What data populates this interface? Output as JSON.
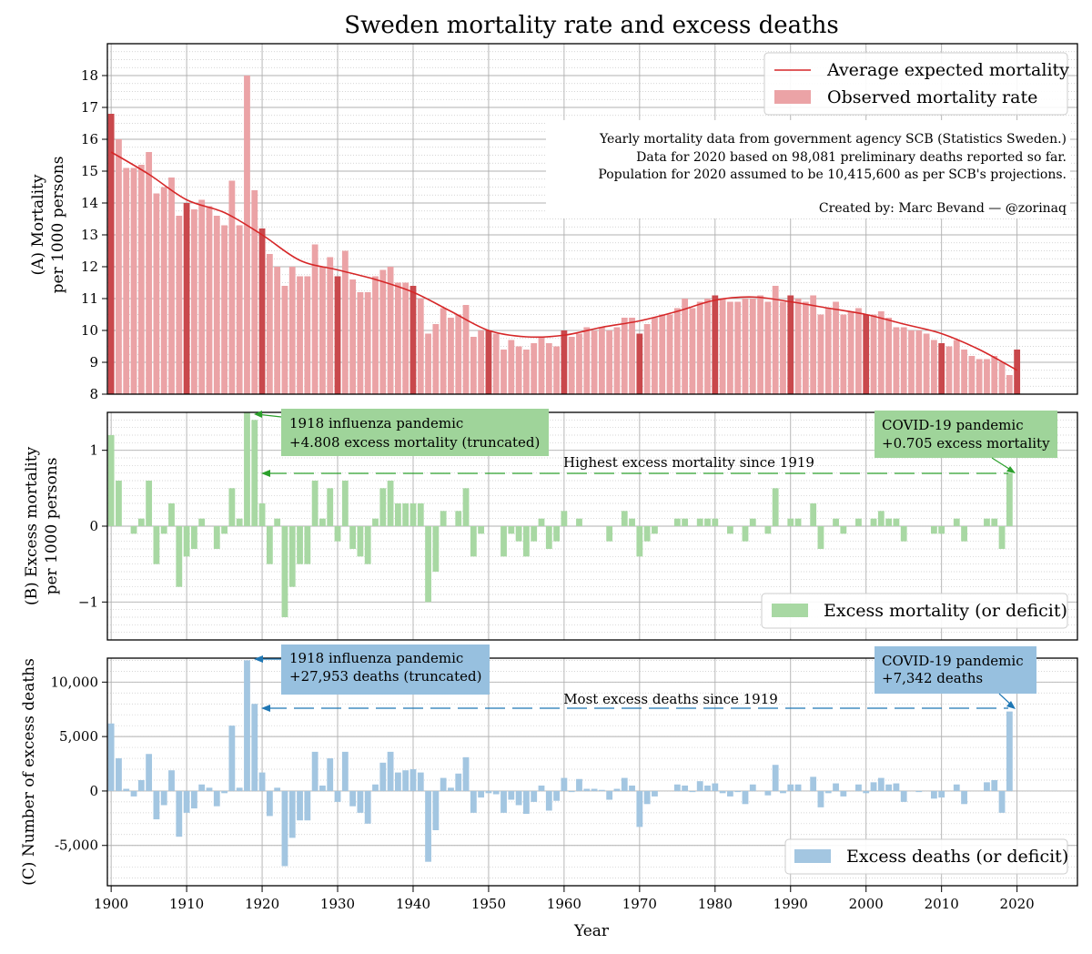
{
  "title": "Sweden mortality rate and excess deaths",
  "xlabel": "Year",
  "x_ticks": [
    1900,
    1910,
    1920,
    1930,
    1940,
    1950,
    1960,
    1970,
    1980,
    1990,
    2000,
    2010,
    2020
  ],
  "colors": {
    "red_bar": "#eba3a6",
    "red_bar_decade": "#c9484c",
    "red_line": "#d62728",
    "green_bar": "#a8d8a3",
    "green_box": "#9fd49a",
    "green_arrow": "#2ca02c",
    "blue_bar": "#a3c6e1",
    "blue_box": "#97c0df",
    "blue_arrow": "#1f77b4",
    "grid": "#b0b0b0"
  },
  "panel_a": {
    "ylabel_line1": "(A) Mortality",
    "ylabel_line2": "per 1000 persons",
    "y_ticks": [
      8,
      9,
      10,
      11,
      12,
      13,
      14,
      15,
      16,
      17,
      18
    ],
    "legend_line": "Average expected mortality",
    "legend_bar": "Observed mortality rate",
    "notes": [
      "Yearly mortality data from government agency SCB (Statistics Sweden.)",
      "Data for 2020 based on 98,081 preliminary deaths reported so far.",
      "Population for 2020 assumed to be 10,415,600 as per SCB's projections."
    ],
    "credit": "Created by: Marc Bevand — @zorinaq"
  },
  "panel_b": {
    "ylabel_line1": "(B) Excess mortality",
    "ylabel_line2": "per 1000 persons",
    "y_ticks": [
      -1,
      0,
      1
    ],
    "y_tick_labels": [
      "−1",
      "0",
      "1"
    ],
    "legend": "Excess mortality (or deficit)",
    "ann_1918_line1": "1918 influenza pandemic",
    "ann_1918_line2": "+4.808 excess mortality (truncated)",
    "ann_covid_line1": "COVID-19 pandemic",
    "ann_covid_line2": "+0.705 excess mortality",
    "highest_label": "Highest excess mortality since 1919"
  },
  "panel_c": {
    "ylabel": "(C) Number of excess deaths",
    "y_ticks": [
      -5000,
      0,
      5000,
      10000
    ],
    "y_tick_labels": [
      "-5,000",
      "0",
      "5,000",
      "10,000"
    ],
    "legend": "Excess deaths (or deficit)",
    "ann_1918_line1": "1918 influenza pandemic",
    "ann_1918_line2": "+27,953 deaths (truncated)",
    "ann_covid_line1": "COVID-19 pandemic",
    "ann_covid_line2": "+7,342 deaths",
    "most_label": "Most excess deaths since 1919"
  },
  "chart_data": [
    {
      "type": "bar",
      "panel": "A",
      "overlay_line": "Average expected mortality",
      "x_start": 1900,
      "x_end": 2020,
      "xlim": [
        1899.5,
        2028
      ],
      "ylim": [
        8,
        19
      ],
      "observed": [
        16.8,
        16.0,
        15.1,
        15.1,
        15.2,
        15.6,
        14.3,
        14.5,
        14.8,
        13.6,
        14.0,
        13.8,
        14.1,
        13.9,
        13.6,
        13.3,
        14.7,
        13.3,
        18.0,
        14.4,
        13.2,
        12.4,
        12.0,
        11.4,
        12.0,
        11.7,
        11.7,
        12.7,
        12.0,
        12.3,
        11.7,
        12.5,
        11.6,
        11.2,
        11.2,
        11.7,
        11.9,
        12.0,
        11.5,
        11.5,
        11.4,
        11.0,
        9.9,
        10.2,
        10.7,
        10.4,
        10.5,
        10.8,
        9.8,
        10.0,
        10.0,
        9.9,
        9.4,
        9.7,
        9.5,
        9.4,
        9.6,
        9.8,
        9.6,
        9.5,
        10.0,
        9.8,
        9.9,
        10.1,
        10.0,
        10.1,
        10.0,
        10.1,
        10.4,
        10.4,
        9.9,
        10.2,
        10.4,
        10.5,
        10.5,
        10.7,
        11.0,
        10.7,
        10.9,
        11.0,
        11.1,
        11.0,
        10.9,
        10.9,
        11.0,
        11.0,
        11.1,
        10.9,
        11.4,
        10.9,
        11.1,
        11.0,
        10.9,
        11.1,
        10.5,
        10.7,
        10.9,
        10.5,
        10.6,
        10.7,
        10.5,
        10.5,
        10.6,
        10.4,
        10.1,
        10.1,
        10.0,
        10.0,
        9.9,
        9.7,
        9.6,
        9.5,
        9.7,
        9.4,
        9.2,
        9.1,
        9.1,
        9.2,
        9.0,
        8.6,
        9.4
      ],
      "expected_x": [
        1900,
        1905,
        1910,
        1915,
        1920,
        1925,
        1930,
        1935,
        1940,
        1945,
        1950,
        1955,
        1960,
        1965,
        1970,
        1975,
        1980,
        1985,
        1990,
        1995,
        2000,
        2005,
        2010,
        2015,
        2020
      ],
      "expected_y": [
        15.6,
        14.9,
        14.1,
        13.7,
        13.0,
        12.2,
        11.9,
        11.6,
        11.2,
        10.6,
        10.0,
        9.8,
        9.85,
        10.1,
        10.3,
        10.6,
        10.95,
        11.05,
        10.9,
        10.7,
        10.5,
        10.2,
        9.9,
        9.4,
        8.75
      ]
    },
    {
      "type": "bar",
      "panel": "B",
      "series_name": "Excess mortality (or deficit)",
      "x_start": 1900,
      "ylim": [
        -1.5,
        1.5
      ],
      "values": [
        1.2,
        0.6,
        0.0,
        -0.1,
        0.1,
        0.6,
        -0.5,
        -0.1,
        0.3,
        -0.8,
        -0.4,
        -0.3,
        0.1,
        0.0,
        -0.3,
        -0.1,
        0.5,
        0.1,
        1.5,
        1.4,
        0.3,
        -0.5,
        0.1,
        -1.2,
        -0.8,
        -0.5,
        -0.5,
        0.6,
        0.1,
        0.5,
        -0.2,
        0.6,
        -0.3,
        -0.4,
        -0.5,
        0.1,
        0.5,
        0.6,
        0.3,
        0.3,
        0.3,
        0.3,
        -1.0,
        -0.6,
        0.2,
        0.0,
        0.2,
        0.5,
        -0.4,
        -0.1,
        0.0,
        0.0,
        -0.4,
        -0.1,
        -0.2,
        -0.4,
        -0.2,
        0.1,
        -0.3,
        -0.2,
        0.2,
        0.0,
        0.1,
        0.0,
        0.0,
        0.0,
        -0.2,
        0.0,
        0.2,
        0.1,
        -0.4,
        -0.2,
        -0.1,
        0.0,
        0.0,
        0.1,
        0.1,
        0.0,
        0.1,
        0.1,
        0.1,
        0.0,
        -0.1,
        0.0,
        -0.2,
        0.1,
        0.0,
        -0.1,
        0.5,
        0.0,
        0.1,
        0.1,
        0.0,
        0.3,
        -0.3,
        0.0,
        0.1,
        -0.1,
        0.0,
        0.1,
        0.0,
        0.1,
        0.2,
        0.1,
        0.1,
        -0.2,
        0.0,
        0.0,
        0.0,
        -0.1,
        -0.1,
        0.0,
        0.1,
        -0.2,
        0.0,
        0.0,
        0.1,
        0.1,
        -0.3,
        0.7
      ],
      "truncated_value_1918": 4.808,
      "value_2020": 0.705
    },
    {
      "type": "bar",
      "panel": "C",
      "series_name": "Excess deaths (or deficit)",
      "x_start": 1900,
      "ylim": [
        -8700,
        12200
      ],
      "values": [
        6200,
        3000,
        200,
        -500,
        1000,
        3400,
        -2600,
        -1300,
        1900,
        -4200,
        -2000,
        -1600,
        600,
        300,
        -1400,
        -200,
        6000,
        300,
        12000,
        8000,
        1700,
        -2300,
        300,
        -6900,
        -4300,
        -2700,
        -2700,
        3600,
        500,
        3000,
        -1000,
        3600,
        -1400,
        -2000,
        -3000,
        600,
        2600,
        3600,
        1700,
        1900,
        2000,
        1700,
        -6500,
        -3600,
        1200,
        300,
        1600,
        3100,
        -2000,
        -600,
        -200,
        -300,
        -2000,
        -800,
        -1300,
        -2100,
        -1000,
        500,
        -1800,
        -900,
        1200,
        -100,
        1100,
        200,
        200,
        100,
        -800,
        200,
        1200,
        500,
        -3300,
        -1200,
        -500,
        0,
        0,
        600,
        500,
        -100,
        900,
        500,
        700,
        -200,
        -500,
        -100,
        -1200,
        600,
        0,
        -400,
        2400,
        -200,
        600,
        600,
        0,
        1300,
        -1500,
        -200,
        700,
        -500,
        0,
        600,
        -200,
        800,
        1200,
        600,
        700,
        -1000,
        0,
        -100,
        0,
        -700,
        -600,
        0,
        600,
        -1200,
        0,
        0,
        800,
        1000,
        -2000,
        7300
      ],
      "truncated_value_1918": 27953,
      "value_2020": 7342
    }
  ]
}
